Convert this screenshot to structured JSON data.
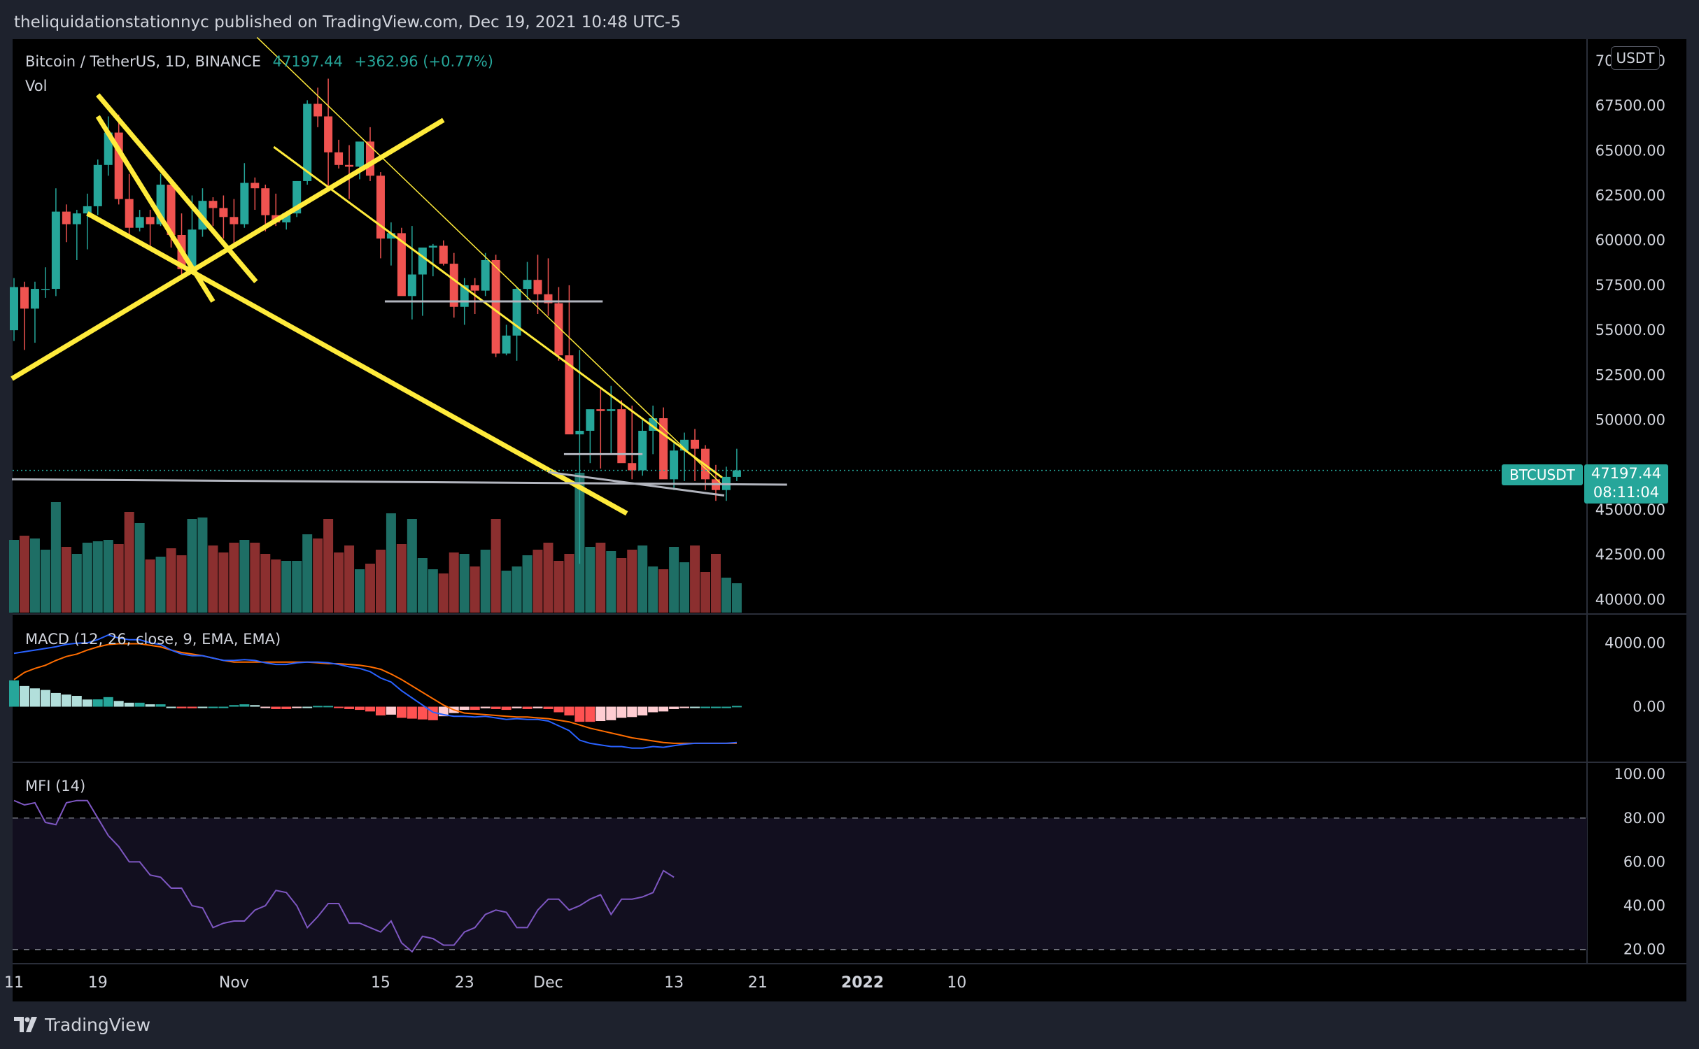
{
  "header": {
    "published_text": "theliquidationstationnyc published on TradingView.com, Dec 19, 2021 10:48 UTC-5"
  },
  "legend": {
    "symbol": "Bitcoin / TetherUS, 1D, BINANCE",
    "price": "47197.44",
    "change": "+362.96 (+0.77%)",
    "vol_label": "Vol",
    "macd_label": "MACD (12, 26, close, 9, EMA, EMA)",
    "mfi_label": "MFI (14)"
  },
  "axis": {
    "currency_button": "USDT"
  },
  "price_tag": {
    "symbol": "BTCUSDT",
    "price": "47197.44",
    "countdown": "08:11:04"
  },
  "footer": {
    "brand": "TradingView"
  },
  "colors": {
    "up": "#26a69a",
    "down": "#ef5350",
    "trendline": "#ffeb3b",
    "support": "#b2b5be",
    "macd": "#2962ff",
    "signal": "#ff6d00",
    "mfi": "#7e57c2"
  },
  "chart_data": {
    "type": "candlestick",
    "symbol": "Bitcoin / TetherUS",
    "interval": "1D",
    "exchange": "BINANCE",
    "price_axis_ticks": [
      "70000.00",
      "67500.00",
      "65000.00",
      "62500.00",
      "60000.00",
      "57500.00",
      "55000.00",
      "52500.00",
      "50000.00",
      "45000.00",
      "42500.00",
      "40000.00"
    ],
    "price_ylim": [
      39200,
      71200
    ],
    "time_axis_ticks": [
      "11",
      "19",
      "Nov",
      "15",
      "23",
      "Dec",
      "13",
      "21",
      "2022",
      "10"
    ],
    "candles": {
      "dates": [
        "2021-10-11",
        "2021-10-12",
        "2021-10-13",
        "2021-10-14",
        "2021-10-15",
        "2021-10-16",
        "2021-10-17",
        "2021-10-18",
        "2021-10-19",
        "2021-10-20",
        "2021-10-21",
        "2021-10-22",
        "2021-10-23",
        "2021-10-24",
        "2021-10-25",
        "2021-10-26",
        "2021-10-27",
        "2021-10-28",
        "2021-10-29",
        "2021-10-30",
        "2021-10-31",
        "2021-11-01",
        "2021-11-02",
        "2021-11-03",
        "2021-11-04",
        "2021-11-05",
        "2021-11-06",
        "2021-11-07",
        "2021-11-08",
        "2021-11-09",
        "2021-11-10",
        "2021-11-11",
        "2021-11-12",
        "2021-11-13",
        "2021-11-14",
        "2021-11-15",
        "2021-11-16",
        "2021-11-17",
        "2021-11-18",
        "2021-11-19",
        "2021-11-20",
        "2021-11-21",
        "2021-11-22",
        "2021-11-23",
        "2021-11-24",
        "2021-11-25",
        "2021-11-26",
        "2021-11-27",
        "2021-11-28",
        "2021-11-29",
        "2021-11-30",
        "2021-12-01",
        "2021-12-02",
        "2021-12-03",
        "2021-12-04",
        "2021-12-05",
        "2021-12-06",
        "2021-12-07",
        "2021-12-08",
        "2021-12-09",
        "2021-12-10",
        "2021-12-11",
        "2021-12-12",
        "2021-12-13",
        "2021-12-14",
        "2021-12-15",
        "2021-12-16",
        "2021-12-17",
        "2021-12-18",
        "2021-12-19"
      ],
      "open": [
        55000,
        57400,
        56200,
        57300,
        57300,
        61600,
        60900,
        61500,
        61900,
        64200,
        66000,
        62300,
        60700,
        61300,
        60900,
        63100,
        60300,
        58400,
        60600,
        62200,
        61800,
        61300,
        60900,
        63200,
        62900,
        61400,
        61000,
        61500,
        63300,
        67600,
        66900,
        64900,
        64200,
        64100,
        65500,
        63600,
        60100,
        60400,
        56900,
        58100,
        59600,
        59700,
        58700,
        56300,
        57500,
        57200,
        58900,
        53700,
        54700,
        57300,
        57800,
        57000,
        56500,
        53600,
        49200,
        49400,
        50600,
        50500,
        50600,
        47600,
        47200,
        49400,
        50100,
        46700,
        48300,
        48900,
        48400,
        46700,
        46100,
        46834
      ],
      "high": [
        57900,
        57700,
        57700,
        58500,
        62900,
        62000,
        61700,
        62600,
        64500,
        66900,
        67000,
        63700,
        61700,
        61700,
        63700,
        63300,
        61500,
        62500,
        62900,
        62400,
        62500,
        62300,
        64300,
        63500,
        63100,
        62600,
        61600,
        63300,
        67800,
        68500,
        69000,
        65600,
        65300,
        65000,
        66300,
        63800,
        61000,
        60700,
        60800,
        58900,
        59800,
        60000,
        59300,
        57900,
        57900,
        59300,
        59200,
        55300,
        57400,
        58800,
        59200,
        59000,
        57400,
        57500,
        53900,
        49800,
        51700,
        51900,
        51100,
        50800,
        50100,
        50800,
        50700,
        48700,
        49300,
        49500,
        48600,
        47500,
        47400,
        48400
      ],
      "low": [
        54400,
        53900,
        54300,
        56800,
        56900,
        59900,
        58900,
        59500,
        61400,
        63600,
        62000,
        60100,
        60500,
        59600,
        60800,
        59600,
        58100,
        58300,
        60200,
        60800,
        60100,
        59600,
        60700,
        61700,
        60500,
        60800,
        60600,
        61300,
        63100,
        66300,
        63000,
        64000,
        62300,
        63400,
        63300,
        59000,
        58600,
        58500,
        55600,
        55800,
        58000,
        58600,
        55700,
        55300,
        55900,
        56900,
        53500,
        53600,
        53300,
        56700,
        55900,
        55800,
        53300,
        51900,
        42000,
        47600,
        47300,
        48100,
        48500,
        46700,
        46900,
        48100,
        48400,
        46100,
        46600,
        46600,
        46100,
        45500,
        45500,
        46600
      ],
      "close": [
        57400,
        56200,
        57300,
        57300,
        61600,
        60900,
        61500,
        61900,
        64200,
        66000,
        62300,
        60700,
        61300,
        60900,
        63100,
        60300,
        58400,
        60600,
        62200,
        61800,
        61300,
        60900,
        63200,
        62900,
        61400,
        61000,
        61500,
        63300,
        67600,
        66900,
        64900,
        64200,
        64100,
        65500,
        63600,
        60100,
        60400,
        56900,
        58100,
        59600,
        59700,
        58700,
        56300,
        57500,
        57200,
        58900,
        53700,
        54700,
        57300,
        57800,
        57000,
        56500,
        53600,
        49200,
        49400,
        50600,
        50500,
        50600,
        47600,
        47200,
        49400,
        50100,
        46700,
        48300,
        48900,
        48400,
        46700,
        46100,
        46834,
        47197
      ]
    },
    "volume": [
      52000,
      55000,
      53000,
      45000,
      79000,
      47000,
      42000,
      50000,
      51000,
      52000,
      49000,
      72000,
      64000,
      38000,
      40000,
      46000,
      41000,
      67000,
      68000,
      48000,
      43000,
      50000,
      52000,
      50000,
      42000,
      38000,
      37000,
      37000,
      56000,
      53000,
      67000,
      43000,
      48000,
      31000,
      35000,
      45000,
      71000,
      49000,
      67000,
      39000,
      31000,
      28000,
      43000,
      42000,
      33000,
      45000,
      67000,
      30000,
      33000,
      41000,
      45000,
      50000,
      37000,
      42000,
      100000,
      47000,
      50000,
      44000,
      39000,
      45000,
      48000,
      33000,
      31000,
      47000,
      36000,
      48000,
      29000,
      42000,
      25000,
      21000
    ],
    "macd": {
      "macd": [
        3350,
        3450,
        3550,
        3650,
        3760,
        3910,
        3980,
        4000,
        4210,
        4500,
        4310,
        4200,
        4200,
        4000,
        3900,
        3550,
        3300,
        3200,
        3200,
        3050,
        2900,
        2900,
        2950,
        2900,
        2750,
        2650,
        2650,
        2750,
        2800,
        2800,
        2750,
        2650,
        2500,
        2400,
        2200,
        1800,
        1550,
        1000,
        550,
        100,
        -350,
        -500,
        -600,
        -600,
        -650,
        -600,
        -700,
        -800,
        -750,
        -800,
        -800,
        -900,
        -1200,
        -1500,
        -2100,
        -2300,
        -2400,
        -2500,
        -2500,
        -2600,
        -2600,
        -2500,
        -2550,
        -2450,
        -2350,
        -2300,
        -2300,
        -2300,
        -2300,
        -2250
      ],
      "signal": [
        1700,
        2150,
        2400,
        2600,
        2900,
        3150,
        3300,
        3550,
        3750,
        3900,
        3950,
        3950,
        3950,
        3850,
        3750,
        3550,
        3400,
        3300,
        3200,
        3050,
        2900,
        2800,
        2800,
        2800,
        2800,
        2800,
        2800,
        2800,
        2800,
        2750,
        2700,
        2700,
        2650,
        2600,
        2500,
        2350,
        2050,
        1700,
        1300,
        900,
        500,
        100,
        -200,
        -400,
        -450,
        -500,
        -550,
        -600,
        -650,
        -650,
        -700,
        -750,
        -850,
        -950,
        -1150,
        -1350,
        -1500,
        -1650,
        -1800,
        -1950,
        -2050,
        -2150,
        -2250,
        -2300,
        -2300,
        -2300,
        -2300,
        -2300,
        -2300,
        -2300
      ]
    },
    "macd_axis_ticks": [
      "4000.00",
      "0.00"
    ],
    "mfi": [
      88,
      86,
      87,
      78,
      77,
      87,
      88,
      88,
      80,
      72,
      67,
      60,
      60,
      54,
      53,
      48,
      48,
      40,
      39,
      30,
      32,
      33,
      33,
      38,
      40,
      47,
      46,
      40,
      30,
      35,
      41,
      41,
      32,
      32,
      30,
      28,
      33,
      23,
      19,
      26,
      25,
      22,
      22,
      28,
      30,
      36,
      38,
      37,
      30,
      30,
      38,
      43,
      43,
      38,
      40,
      43,
      45,
      36,
      43,
      43,
      44,
      46,
      56,
      53,
      null,
      null,
      null,
      null,
      null,
      null
    ],
    "mfi_axis_ticks": [
      "100.00",
      "80.00",
      "60.00",
      "40.00",
      "20.00"
    ],
    "mfi_bands": [
      20,
      80
    ]
  }
}
